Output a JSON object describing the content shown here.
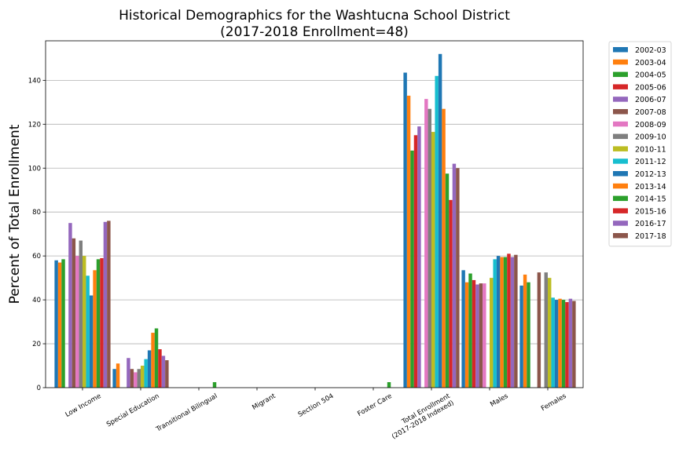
{
  "chart_data": {
    "type": "bar",
    "title_line1": "Historical Demographics for the Washtucna School District",
    "title_line2": "(2017-2018 Enrollment=48)",
    "ylabel": "Percent of Total Enrollment",
    "xlabel": "",
    "ylim": [
      0,
      158
    ],
    "yticks": [
      0,
      20,
      40,
      60,
      80,
      100,
      120,
      140
    ],
    "grid": "horizontal",
    "legend_position": "outside-right-top",
    "categories": [
      "Low Income",
      "Special Education",
      "Transitional Bilingual",
      "Migrant",
      "Section 504",
      "Foster Care",
      "Total Enrollment\n(2017-2018 Indexed)",
      "Males",
      "Females"
    ],
    "series": [
      {
        "name": "2002-03",
        "color": "#1f77b4",
        "values": [
          58,
          8.5,
          0,
          0,
          0,
          0,
          143.5,
          53.5,
          46.5
        ]
      },
      {
        "name": "2003-04",
        "color": "#ff7f0e",
        "values": [
          57,
          11,
          0,
          0,
          0,
          0,
          133,
          48,
          51.5
        ]
      },
      {
        "name": "2004-05",
        "color": "#2ca02c",
        "values": [
          58.5,
          0,
          0,
          0,
          0,
          0,
          108,
          52,
          48
        ]
      },
      {
        "name": "2005-06",
        "color": "#d62728",
        "values": [
          0,
          0,
          0,
          0,
          0,
          0,
          115,
          49,
          0
        ]
      },
      {
        "name": "2006-07",
        "color": "#9467bd",
        "values": [
          75,
          13.5,
          0,
          0,
          0,
          0,
          119,
          47,
          0
        ]
      },
      {
        "name": "2007-08",
        "color": "#8c564b",
        "values": [
          68,
          8.5,
          0,
          0,
          0,
          0,
          0,
          47.5,
          52.5
        ]
      },
      {
        "name": "2008-09",
        "color": "#e377c2",
        "values": [
          60,
          7,
          0,
          0,
          0,
          0,
          131.5,
          47.5,
          0
        ]
      },
      {
        "name": "2009-10",
        "color": "#7f7f7f",
        "values": [
          67,
          8.5,
          0,
          0,
          0,
          0,
          127,
          0,
          52.5
        ]
      },
      {
        "name": "2010-11",
        "color": "#bcbd22",
        "values": [
          60,
          10,
          0,
          0,
          0,
          0,
          116.5,
          50,
          50
        ]
      },
      {
        "name": "2011-12",
        "color": "#17becf",
        "values": [
          51,
          13,
          0,
          0,
          0,
          0,
          142,
          58.5,
          41
        ]
      },
      {
        "name": "2012-13",
        "color": "#1f77b4",
        "values": [
          42,
          17,
          0,
          0,
          0,
          0,
          152,
          60,
          40
        ]
      },
      {
        "name": "2013-14",
        "color": "#ff7f0e",
        "values": [
          53.5,
          25,
          0,
          0,
          0,
          0,
          127,
          59.5,
          40.5
        ]
      },
      {
        "name": "2014-15",
        "color": "#2ca02c",
        "values": [
          58.5,
          27,
          2.5,
          0,
          0,
          2.5,
          97.5,
          59.5,
          40
        ]
      },
      {
        "name": "2015-16",
        "color": "#d62728",
        "values": [
          59,
          17.5,
          0,
          0,
          0,
          0,
          85.5,
          61,
          39
        ]
      },
      {
        "name": "2016-17",
        "color": "#9467bd",
        "values": [
          75.5,
          14.5,
          0,
          0,
          0,
          0,
          102,
          59.5,
          40.5
        ]
      },
      {
        "name": "2017-18",
        "color": "#8c564b",
        "values": [
          76,
          12.5,
          0,
          0,
          0,
          0,
          100,
          60.5,
          39.5
        ]
      }
    ]
  }
}
